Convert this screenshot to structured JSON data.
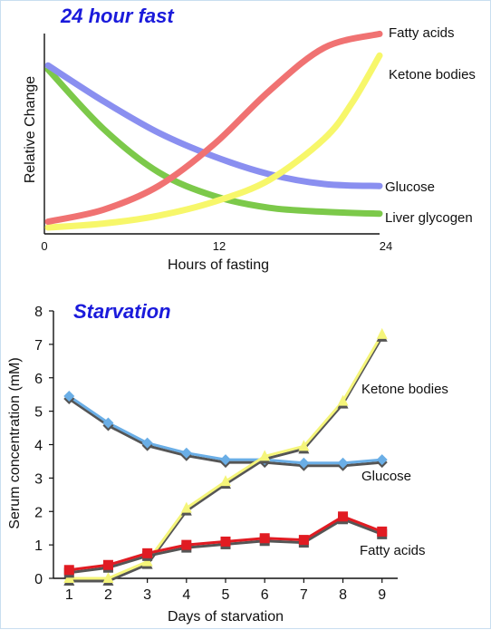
{
  "chart_data": [
    {
      "type": "line",
      "title": "24 hour fast",
      "xlabel": "Hours of fasting",
      "ylabel": "Relative Change",
      "x_ticks": [
        "0",
        "12",
        "24"
      ],
      "xlim": [
        0,
        24
      ],
      "ylim": [
        0,
        1
      ],
      "grid": false,
      "legend": "inline labels at line ends",
      "series": [
        {
          "name": "Fatty acids",
          "color": "#f07272",
          "x": [
            0,
            4,
            8,
            12,
            16,
            20,
            24
          ],
          "y": [
            0.03,
            0.09,
            0.21,
            0.42,
            0.69,
            0.91,
            0.98
          ]
        },
        {
          "name": "Ketone bodies",
          "color": "#f7f76a",
          "x": [
            0,
            4,
            8,
            12,
            16,
            20,
            22,
            24
          ],
          "y": [
            0.0,
            0.02,
            0.06,
            0.13,
            0.24,
            0.45,
            0.63,
            0.87
          ]
        },
        {
          "name": "Glucose",
          "color": "#8a8ff0",
          "x": [
            0,
            4,
            8,
            12,
            16,
            20,
            24
          ],
          "y": [
            0.82,
            0.64,
            0.48,
            0.36,
            0.27,
            0.22,
            0.21
          ]
        },
        {
          "name": "Liver glycogen",
          "color": "#7cc94a",
          "x": [
            0,
            4,
            8,
            12,
            16,
            20,
            24
          ],
          "y": [
            0.8,
            0.5,
            0.28,
            0.16,
            0.1,
            0.08,
            0.07
          ]
        }
      ]
    },
    {
      "type": "line",
      "title": "Starvation",
      "xlabel": "Days of starvation",
      "ylabel": "Serum concentration (mM)",
      "x": [
        1,
        2,
        3,
        4,
        5,
        6,
        7,
        8,
        9
      ],
      "x_ticks": [
        "1",
        "2",
        "3",
        "4",
        "5",
        "6",
        "7",
        "8",
        "9"
      ],
      "y_ticks": [
        "0",
        "1",
        "2",
        "3",
        "4",
        "5",
        "6",
        "7",
        "8"
      ],
      "xlim": [
        0.6,
        9.4
      ],
      "ylim": [
        0,
        8
      ],
      "grid": false,
      "legend": "inline labels near lines",
      "series": [
        {
          "name": "Ketone bodies",
          "color": "#f5f57a",
          "marker": "triangle",
          "values": [
            0.0,
            0.0,
            0.5,
            2.1,
            2.9,
            3.65,
            3.95,
            5.3,
            7.3
          ]
        },
        {
          "name": "Glucose",
          "color": "#6aaee6",
          "marker": "diamond",
          "values": [
            5.45,
            4.65,
            4.05,
            3.75,
            3.55,
            3.55,
            3.45,
            3.45,
            3.55
          ]
        },
        {
          "name": "Fatty acids",
          "color": "#e11b22",
          "marker": "square",
          "values": [
            0.25,
            0.4,
            0.75,
            1.0,
            1.1,
            1.2,
            1.15,
            1.85,
            1.4
          ]
        }
      ]
    }
  ]
}
